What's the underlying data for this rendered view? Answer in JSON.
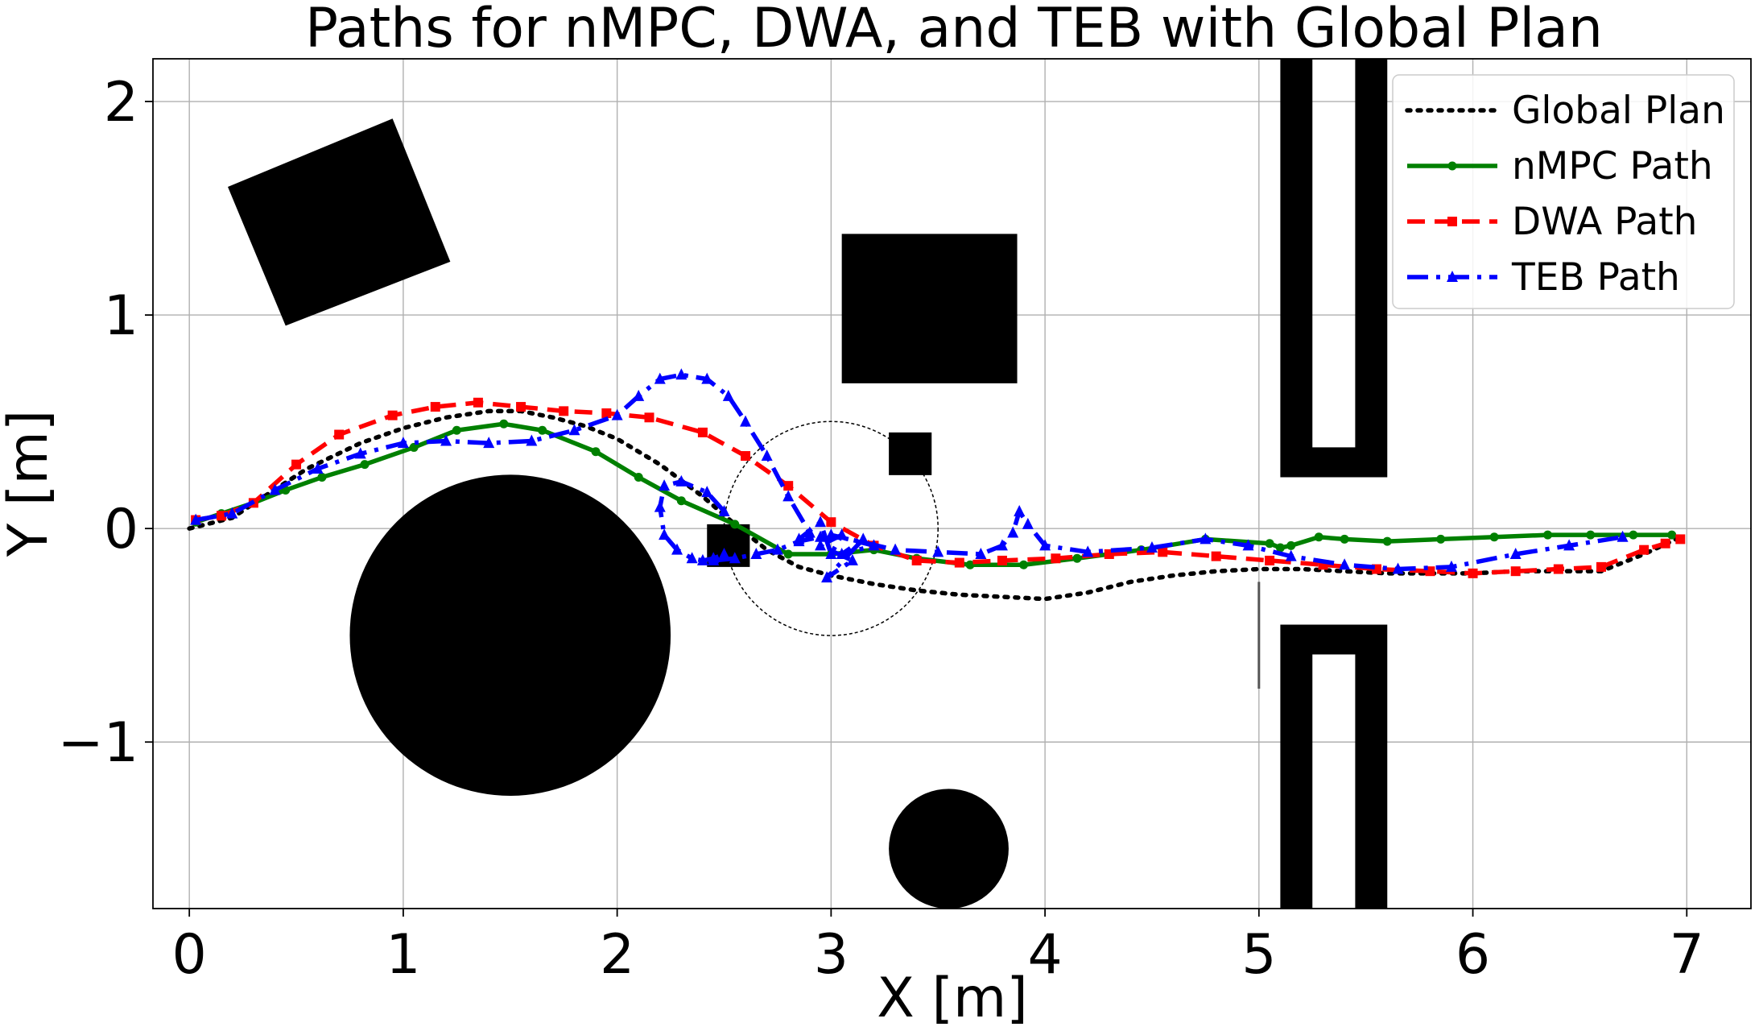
{
  "chart_data": {
    "type": "line",
    "title": "Paths for nMPC, DWA, and TEB with Global Plan",
    "xlabel": "X [m]",
    "ylabel": "Y [m]",
    "xlim": [
      -0.17,
      7.3
    ],
    "ylim": [
      -1.78,
      2.2
    ],
    "xticks": [
      0,
      1,
      2,
      3,
      4,
      5,
      6,
      7
    ],
    "xtick_labels": [
      "0",
      "1",
      "2",
      "3",
      "4",
      "5",
      "6",
      "7"
    ],
    "yticks": [
      -1,
      0,
      1,
      2
    ],
    "ytick_labels": [
      "−1",
      "0",
      "1",
      "2"
    ],
    "grid": true,
    "legend_position": "top-right",
    "series": [
      {
        "name": "Global Plan",
        "color": "#000000",
        "style": "dotted",
        "marker": "none",
        "x": [
          0.0,
          0.2,
          0.35,
          0.55,
          0.8,
          1.0,
          1.2,
          1.4,
          1.55,
          1.7,
          1.85,
          2.0,
          2.2,
          2.4,
          2.55,
          2.7,
          2.85,
          3.0,
          3.2,
          3.4,
          3.6,
          3.8,
          4.0,
          4.2,
          4.4,
          4.6,
          4.8,
          5.0,
          5.2,
          5.4,
          5.6,
          5.8,
          6.0,
          6.2,
          6.4,
          6.6,
          6.8,
          6.95
        ],
        "y": [
          0.0,
          0.05,
          0.15,
          0.28,
          0.4,
          0.47,
          0.52,
          0.55,
          0.55,
          0.52,
          0.48,
          0.42,
          0.3,
          0.15,
          0.02,
          -0.1,
          -0.18,
          -0.22,
          -0.26,
          -0.29,
          -0.31,
          -0.32,
          -0.33,
          -0.3,
          -0.25,
          -0.22,
          -0.2,
          -0.19,
          -0.19,
          -0.2,
          -0.21,
          -0.21,
          -0.21,
          -0.2,
          -0.2,
          -0.2,
          -0.12,
          -0.05
        ]
      },
      {
        "name": "nMPC Path",
        "color": "#008000",
        "style": "solid",
        "marker": "circle",
        "x": [
          0.03,
          0.15,
          0.3,
          0.45,
          0.62,
          0.82,
          1.05,
          1.25,
          1.47,
          1.65,
          1.9,
          2.1,
          2.3,
          2.55,
          2.8,
          3.0,
          3.2,
          3.4,
          3.65,
          3.9,
          4.15,
          4.45,
          4.75,
          5.05,
          5.1,
          5.15,
          5.28,
          5.4,
          5.6,
          5.85,
          6.1,
          6.35,
          6.55,
          6.75,
          6.93
        ],
        "y": [
          0.03,
          0.07,
          0.12,
          0.18,
          0.24,
          0.3,
          0.38,
          0.46,
          0.49,
          0.46,
          0.36,
          0.24,
          0.13,
          0.02,
          -0.12,
          -0.12,
          -0.1,
          -0.14,
          -0.17,
          -0.17,
          -0.14,
          -0.1,
          -0.05,
          -0.07,
          -0.09,
          -0.08,
          -0.04,
          -0.05,
          -0.06,
          -0.05,
          -0.04,
          -0.03,
          -0.03,
          -0.03,
          -0.03
        ]
      },
      {
        "name": "DWA Path",
        "color": "#ff0000",
        "style": "dashed",
        "marker": "square",
        "x": [
          0.03,
          0.15,
          0.3,
          0.5,
          0.7,
          0.95,
          1.15,
          1.35,
          1.55,
          1.75,
          1.95,
          2.15,
          2.4,
          2.6,
          2.8,
          3.0,
          3.2,
          3.4,
          3.6,
          3.8,
          4.05,
          4.3,
          4.55,
          4.8,
          5.05,
          5.3,
          5.55,
          5.8,
          6.0,
          6.2,
          6.4,
          6.6,
          6.8,
          6.9,
          6.97
        ],
        "y": [
          0.04,
          0.06,
          0.12,
          0.3,
          0.44,
          0.53,
          0.57,
          0.59,
          0.57,
          0.55,
          0.54,
          0.52,
          0.45,
          0.34,
          0.2,
          0.03,
          -0.08,
          -0.15,
          -0.16,
          -0.15,
          -0.14,
          -0.12,
          -0.11,
          -0.13,
          -0.15,
          -0.17,
          -0.19,
          -0.2,
          -0.21,
          -0.2,
          -0.19,
          -0.18,
          -0.1,
          -0.07,
          -0.05
        ]
      },
      {
        "name": "TEB Path",
        "color": "#0000ff",
        "style": "dashdot",
        "marker": "triangle",
        "x": [
          0.03,
          0.2,
          0.4,
          0.6,
          0.8,
          1.0,
          1.2,
          1.4,
          1.6,
          1.8,
          2.0,
          2.1,
          2.2,
          2.3,
          2.42,
          2.52,
          2.6,
          2.7,
          2.8,
          2.9,
          2.85,
          2.95,
          3.0,
          3.05,
          2.95,
          3.1,
          2.98,
          3.15,
          3.05,
          3.2,
          3.0,
          3.3,
          3.5,
          3.7,
          3.8,
          3.85,
          3.88,
          3.92,
          4.0,
          4.2,
          4.5,
          4.75,
          4.95,
          5.15,
          5.4,
          5.65,
          5.9,
          6.2,
          6.45,
          6.7
        ],
        "y": [
          0.04,
          0.07,
          0.18,
          0.28,
          0.35,
          0.4,
          0.41,
          0.4,
          0.41,
          0.46,
          0.53,
          0.62,
          0.7,
          0.72,
          0.7,
          0.62,
          0.5,
          0.34,
          0.15,
          -0.02,
          -0.05,
          0.03,
          -0.12,
          -0.03,
          -0.08,
          -0.15,
          -0.23,
          -0.05,
          -0.12,
          -0.08,
          -0.03,
          -0.1,
          -0.11,
          -0.12,
          -0.08,
          -0.02,
          0.08,
          0.02,
          -0.08,
          -0.11,
          -0.09,
          -0.05,
          -0.08,
          -0.13,
          -0.17,
          -0.19,
          -0.18,
          -0.12,
          -0.08,
          -0.04
        ]
      }
    ],
    "teb_loop": {
      "x": [
        2.5,
        2.42,
        2.3,
        2.22,
        2.2,
        2.22,
        2.28,
        2.35,
        2.4,
        2.45,
        2.5
      ],
      "y": [
        0.08,
        0.17,
        0.22,
        0.2,
        0.1,
        -0.03,
        -0.1,
        -0.14,
        -0.15,
        -0.14,
        -0.12
      ]
    },
    "teb_loop2": {
      "x": [
        2.45,
        2.55,
        2.65,
        2.75,
        2.85,
        2.95
      ],
      "y": [
        -0.15,
        -0.14,
        -0.12,
        -0.1,
        -0.06,
        -0.04
      ]
    },
    "obstacles": {
      "polygons": [
        {
          "name": "rotated-square",
          "points": [
            [
              0.18,
              1.6
            ],
            [
              0.95,
              1.92
            ],
            [
              1.22,
              1.25
            ],
            [
              0.45,
              0.95
            ]
          ]
        },
        {
          "name": "large-square",
          "points": [
            [
              3.05,
              1.38
            ],
            [
              3.87,
              1.38
            ],
            [
              3.87,
              0.68
            ],
            [
              3.05,
              0.68
            ]
          ]
        },
        {
          "name": "small-square",
          "points": [
            [
              3.27,
              0.45
            ],
            [
              3.47,
              0.45
            ],
            [
              3.47,
              0.25
            ],
            [
              3.27,
              0.25
            ]
          ]
        },
        {
          "name": "tiny-square",
          "points": [
            [
              2.42,
              0.02
            ],
            [
              2.62,
              0.02
            ],
            [
              2.62,
              -0.18
            ],
            [
              2.42,
              -0.18
            ]
          ]
        }
      ],
      "circles": [
        {
          "name": "large-circle",
          "cx": 1.5,
          "cy": -0.5,
          "r": 0.75
        },
        {
          "name": "small-circle",
          "cx": 3.55,
          "cy": -1.5,
          "r": 0.28
        }
      ],
      "u_shapes": [
        {
          "name": "upper-u",
          "outer": [
            [
              5.1,
              2.2
            ],
            [
              5.6,
              2.2
            ],
            [
              5.6,
              0.24
            ],
            [
              5.1,
              0.24
            ]
          ],
          "inner": [
            [
              5.25,
              2.2
            ],
            [
              5.45,
              2.2
            ],
            [
              5.45,
              0.38
            ],
            [
              5.25,
              0.38
            ]
          ]
        },
        {
          "name": "lower-u",
          "outer": [
            [
              5.1,
              -0.45
            ],
            [
              5.6,
              -0.45
            ],
            [
              5.6,
              -1.78
            ],
            [
              5.1,
              -1.78
            ]
          ],
          "inner": [
            [
              5.25,
              -0.59
            ],
            [
              5.45,
              -0.59
            ],
            [
              5.45,
              -1.78
            ],
            [
              5.25,
              -1.78
            ]
          ]
        }
      ],
      "gate_line": {
        "x": 5.0,
        "y1": -0.25,
        "y2": -0.75
      },
      "dashed_circle": {
        "cx": 3.0,
        "cy": 0.0,
        "r": 0.5
      }
    }
  }
}
